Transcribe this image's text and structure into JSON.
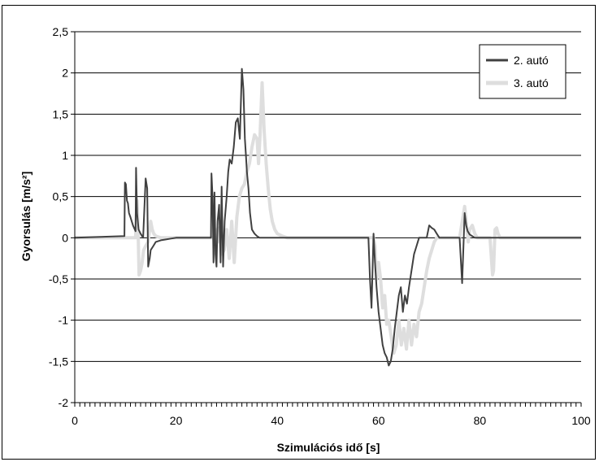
{
  "chart_data": {
    "type": "line",
    "title": "",
    "xlabel": "Szimulációs idő [s]",
    "ylabel": "Gyorsulás [m/s²]",
    "xlim": [
      0,
      100
    ],
    "ylim": [
      -2,
      2.5
    ],
    "xticks": [
      0,
      20,
      40,
      60,
      80,
      100
    ],
    "yticks": [
      2.5,
      2,
      1.5,
      1,
      0.5,
      0,
      -0.5,
      -1,
      -1.5,
      -2
    ],
    "ytick_labels": [
      "2,5",
      "2",
      "1,5",
      "1",
      "0,5",
      "0",
      "-0,5",
      "-1",
      "-1,5",
      "-2"
    ],
    "grid": "horizontal",
    "legend_position": "top-right",
    "series": [
      {
        "name": "2. autó",
        "color": "#404040",
        "x": [
          0,
          9.8,
          9.9,
          10.1,
          10.3,
          10.5,
          10.7,
          11.0,
          11.5,
          12.0,
          12.1,
          12.3,
          12.6,
          13.0,
          13.5,
          14.0,
          14.3,
          14.5,
          14.8,
          15.0,
          15.5,
          16.0,
          17.0,
          18.0,
          19.0,
          20.0,
          25.0,
          26.9,
          27.0,
          27.2,
          27.4,
          27.6,
          27.8,
          28.0,
          28.2,
          28.5,
          28.8,
          29.0,
          29.3,
          29.6,
          30.0,
          30.3,
          30.6,
          31.0,
          31.4,
          31.8,
          32.2,
          32.6,
          33.0,
          33.3,
          33.6,
          33.8,
          34.0,
          34.3,
          34.6,
          35.0,
          35.5,
          36.0,
          36.5,
          37.0,
          37.5,
          38.0,
          39.0,
          40.0,
          45.0,
          55.0,
          58.0,
          58.3,
          58.6,
          59.0,
          59.3,
          59.6,
          60.0,
          60.4,
          60.8,
          61.2,
          61.6,
          62.0,
          62.4,
          62.8,
          63.2,
          63.6,
          64.0,
          64.4,
          64.8,
          65.2,
          65.6,
          66.0,
          66.5,
          67.0,
          67.5,
          68.0,
          68.5,
          69.0,
          69.5,
          70.0,
          70.5,
          71.0,
          71.5,
          72.0,
          73.0,
          75.0,
          76.0,
          76.5,
          77.0,
          77.3,
          77.6,
          78.0,
          78.5,
          79.0,
          80.0,
          82.0,
          84.0,
          85.0,
          100
        ],
        "y": [
          0,
          0.02,
          0.67,
          0.65,
          0.45,
          0.42,
          0.3,
          0.25,
          0.15,
          0.08,
          0.85,
          0.3,
          0.1,
          0.05,
          0.0,
          0.72,
          0.6,
          -0.35,
          -0.25,
          -0.15,
          -0.1,
          -0.05,
          -0.03,
          -0.02,
          -0.01,
          0,
          0,
          0.0,
          0.78,
          0.5,
          -0.3,
          0.55,
          -0.2,
          -0.35,
          0.2,
          0.4,
          -0.3,
          0.62,
          -0.35,
          0.2,
          0.5,
          0.8,
          0.95,
          0.9,
          1.1,
          1.4,
          1.45,
          1.2,
          2.05,
          1.8,
          1.2,
          1.0,
          0.8,
          0.6,
          0.3,
          0.1,
          0.05,
          0.02,
          0.0,
          0.0,
          0.0,
          0.0,
          0.0,
          0.0,
          0,
          0,
          0.0,
          -0.5,
          -0.85,
          0.05,
          -0.3,
          -0.6,
          -0.9,
          -1.1,
          -1.3,
          -1.4,
          -1.45,
          -1.55,
          -1.5,
          -1.35,
          -1.1,
          -0.9,
          -0.7,
          -0.6,
          -0.9,
          -0.7,
          -0.8,
          -0.6,
          -0.4,
          -0.2,
          -0.1,
          0.0,
          0.0,
          0.0,
          0.0,
          0.15,
          0.12,
          0.1,
          0.05,
          0.0,
          0.0,
          0.0,
          0.0,
          -0.55,
          0.3,
          0.15,
          0.08,
          0.04,
          0.02,
          0.0,
          0.0,
          0.0,
          0.0,
          0.0,
          0
        ]
      },
      {
        "name": "3. autó",
        "color": "#dedede",
        "x": [
          0,
          12.0,
          12.3,
          12.5,
          12.7,
          13.0,
          13.3,
          13.6,
          14.0,
          14.5,
          15.0,
          15.3,
          15.6,
          16.0,
          17.0,
          18.0,
          20.0,
          27.5,
          27.8,
          28.2,
          28.6,
          29.0,
          29.5,
          30.0,
          30.5,
          31.0,
          31.5,
          32.0,
          32.5,
          33.0,
          33.5,
          34.0,
          34.5,
          35.0,
          35.5,
          36.0,
          36.3,
          36.6,
          37.0,
          37.4,
          37.8,
          38.2,
          38.6,
          39.0,
          39.5,
          40.0,
          41.0,
          42.0,
          50.0,
          59.0,
          59.3,
          59.6,
          60.0,
          60.4,
          60.8,
          61.2,
          61.6,
          62.0,
          62.5,
          63.0,
          63.5,
          64.0,
          64.5,
          65.0,
          65.5,
          66.0,
          66.5,
          67.0,
          67.5,
          68.0,
          68.5,
          69.0,
          69.5,
          70.0,
          70.5,
          71.0,
          71.5,
          72.0,
          73.0,
          76.0,
          77.0,
          77.3,
          77.7,
          78.0,
          78.5,
          79.0,
          79.5,
          80.0,
          81.0,
          82.0,
          82.5,
          82.7,
          83.0,
          83.3,
          83.6,
          84.0,
          85.0,
          100
        ],
        "y": [
          0,
          0.0,
          0.45,
          0.1,
          -0.45,
          -0.4,
          -0.3,
          -0.15,
          -0.1,
          -0.05,
          0.2,
          0.1,
          0.05,
          0.02,
          0.0,
          0.0,
          0,
          0.0,
          0.1,
          -0.05,
          0.12,
          -0.2,
          -0.15,
          0.1,
          -0.25,
          0.2,
          -0.3,
          0.25,
          0.5,
          0.6,
          0.65,
          0.8,
          0.9,
          1.1,
          1.25,
          1.2,
          0.9,
          1.25,
          1.88,
          1.3,
          0.9,
          0.6,
          0.35,
          0.2,
          0.1,
          0.05,
          0.02,
          0.0,
          0,
          0.0,
          -0.1,
          -0.5,
          -0.3,
          -0.5,
          -0.85,
          -0.7,
          -1.05,
          -1.0,
          -1.2,
          -1.4,
          -1.3,
          -1.0,
          -1.3,
          -1.1,
          -1.35,
          -1.0,
          -1.3,
          -1.05,
          -1.2,
          -0.9,
          -0.8,
          -0.6,
          -0.4,
          -0.25,
          -0.15,
          -0.05,
          0.0,
          0.0,
          0.0,
          0.0,
          0.38,
          0.2,
          -0.05,
          0.1,
          0.15,
          0.05,
          0.0,
          0.0,
          0.0,
          0.0,
          -0.45,
          -0.4,
          0.1,
          0.12,
          0.05,
          0.0,
          0.0,
          0
        ]
      }
    ]
  }
}
